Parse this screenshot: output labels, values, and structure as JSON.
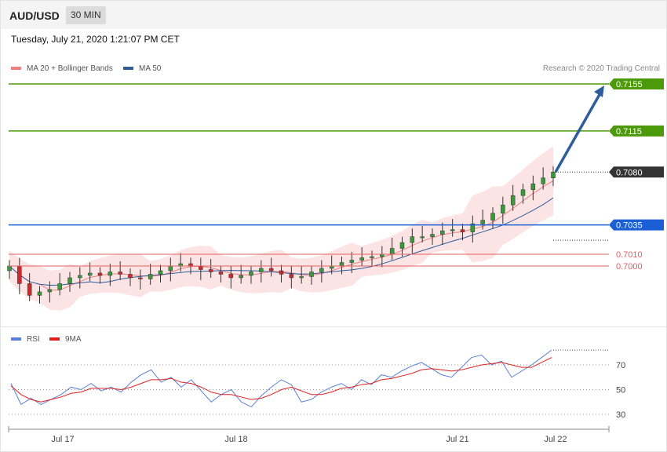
{
  "header": {
    "symbol": "AUD/USD",
    "timeframe": "30 MIN"
  },
  "datetime": "Tuesday, July 21, 2020 1:21:07 PM CET",
  "legend_price": [
    {
      "label": "MA 20 + Bollinger Bands",
      "color": "#f08080"
    },
    {
      "label": "MA 50",
      "color": "#2d5d9b"
    }
  ],
  "legend_rsi": [
    {
      "label": "RSI",
      "color": "#5b7fd6"
    },
    {
      "label": "9MA",
      "color": "#e02020"
    }
  ],
  "credit": "Research © 2020 Trading Central",
  "colors": {
    "green": "#4c9a0a",
    "blue": "#1a5fd6",
    "red": "#e06060",
    "current": "#333333",
    "arrow": "#2d5d9b"
  },
  "chart_data": [
    {
      "type": "line",
      "title": "AUD/USD",
      "x_labels": [
        "Jul 17",
        "Jul 18",
        "Jul 21",
        "Jul 22"
      ],
      "ylim": [
        6950,
        7160
      ],
      "levels": [
        {
          "label": "0.7155",
          "value": 0.7155,
          "kind": "resistance"
        },
        {
          "label": "0.7115",
          "value": 0.7115,
          "kind": "resistance"
        },
        {
          "label": "0.7080",
          "value": 0.708,
          "kind": "current"
        },
        {
          "label": "0.7035",
          "value": 0.7035,
          "kind": "pivot"
        },
        {
          "label": "0.7010",
          "value": 0.701,
          "kind": "support"
        },
        {
          "label": "0.7000",
          "value": 0.7,
          "kind": "support"
        }
      ],
      "target_arrow": {
        "from": 0.708,
        "to": 0.7155
      },
      "price_path": [
        0.7,
        0.6985,
        0.6975,
        0.6978,
        0.698,
        0.6985,
        0.699,
        0.6992,
        0.6994,
        0.6992,
        0.6995,
        0.6993,
        0.699,
        0.6989,
        0.6993,
        0.6996,
        0.7,
        0.7002,
        0.7,
        0.6997,
        0.6995,
        0.6993,
        0.699,
        0.6992,
        0.6995,
        0.6998,
        0.6996,
        0.6993,
        0.699,
        0.6991,
        0.6995,
        0.6998,
        0.7,
        0.7003,
        0.7005,
        0.7007,
        0.7008,
        0.701,
        0.7015,
        0.702,
        0.7025,
        0.7025,
        0.7027,
        0.703,
        0.7031,
        0.7029,
        0.7036,
        0.7039,
        0.7045,
        0.7052,
        0.706,
        0.7065,
        0.707,
        0.7075,
        0.708
      ]
    },
    {
      "type": "line",
      "title": "RSI",
      "x_labels": [
        "Jul 17",
        "Jul 18",
        "Jul 21",
        "Jul 22"
      ],
      "ylim": [
        20,
        85
      ],
      "yticks": [
        "70",
        "50",
        "30"
      ],
      "series": [
        {
          "name": "RSI",
          "values": [
            55,
            38,
            43,
            38,
            42,
            46,
            52,
            50,
            55,
            49,
            52,
            48,
            56,
            62,
            66,
            56,
            60,
            52,
            58,
            49,
            40,
            46,
            50,
            40,
            36,
            45,
            52,
            58,
            54,
            40,
            42,
            48,
            52,
            55,
            50,
            58,
            54,
            62,
            60,
            65,
            69,
            72,
            67,
            62,
            60,
            68,
            76,
            78,
            70,
            73,
            60,
            65,
            70,
            76,
            82
          ]
        },
        {
          "name": "9MA",
          "values": [
            53,
            46,
            42,
            40,
            42,
            44,
            47,
            48,
            51,
            51,
            51,
            50,
            52,
            55,
            58,
            58,
            59,
            56,
            55,
            52,
            48,
            46,
            46,
            44,
            42,
            43,
            46,
            50,
            52,
            49,
            46,
            46,
            48,
            51,
            52,
            54,
            55,
            58,
            59,
            61,
            63,
            66,
            67,
            66,
            65,
            66,
            68,
            70,
            71,
            72,
            70,
            68,
            68,
            72,
            76
          ]
        }
      ]
    }
  ]
}
